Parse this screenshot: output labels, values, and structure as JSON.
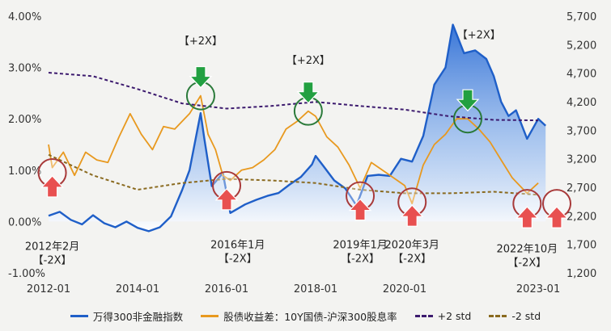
{
  "chart_data": {
    "type": "line",
    "x_ticks": [
      "2012-01",
      "2014-01",
      "2016-01",
      "2018-01",
      "2020-01",
      "2023-01"
    ],
    "y_left_ticks": [
      "4.00%",
      "3.00%",
      "2.00%",
      "1.00%",
      "0.00%",
      "-1.00%"
    ],
    "y_left_range": [
      -1.0,
      4.0
    ],
    "y_right_ticks": [
      "5,700",
      "5,200",
      "4,700",
      "4,200",
      "3,700",
      "3,200",
      "2,700",
      "2,200",
      "1,700",
      "1,200"
    ],
    "y_right_range": [
      1200,
      5700
    ],
    "x_range": [
      "2012-01",
      "2023-06"
    ],
    "series": [
      {
        "name": "万得300非金融指数",
        "axis": "right",
        "color": "#1f5fc8",
        "style": "solid-area",
        "points": [
          [
            "2012-01",
            2200
          ],
          [
            "2012-04",
            2270
          ],
          [
            "2012-07",
            2130
          ],
          [
            "2012-10",
            2050
          ],
          [
            "2013-01",
            2210
          ],
          [
            "2013-04",
            2070
          ],
          [
            "2013-07",
            2000
          ],
          [
            "2013-10",
            2100
          ],
          [
            "2014-01",
            1990
          ],
          [
            "2014-04",
            1930
          ],
          [
            "2014-07",
            2000
          ],
          [
            "2014-10",
            2190
          ],
          [
            "2015-01",
            2650
          ],
          [
            "2015-03",
            3000
          ],
          [
            "2015-06",
            4000
          ],
          [
            "2015-07",
            3550
          ],
          [
            "2015-09",
            2720
          ],
          [
            "2015-12",
            2950
          ],
          [
            "2016-02",
            2250
          ],
          [
            "2016-06",
            2400
          ],
          [
            "2016-09",
            2480
          ],
          [
            "2016-12",
            2550
          ],
          [
            "2017-03",
            2600
          ],
          [
            "2017-06",
            2750
          ],
          [
            "2017-09",
            2880
          ],
          [
            "2017-12",
            3100
          ],
          [
            "2018-01",
            3250
          ],
          [
            "2018-03",
            3080
          ],
          [
            "2018-06",
            2820
          ],
          [
            "2018-09",
            2680
          ],
          [
            "2018-12",
            2380
          ],
          [
            "2019-03",
            2900
          ],
          [
            "2019-06",
            2920
          ],
          [
            "2019-09",
            2900
          ],
          [
            "2019-12",
            3200
          ],
          [
            "2020-03",
            3150
          ],
          [
            "2020-06",
            3600
          ],
          [
            "2020-09",
            4500
          ],
          [
            "2020-12",
            4800
          ],
          [
            "2021-02",
            5550
          ],
          [
            "2021-05",
            5050
          ],
          [
            "2021-08",
            5100
          ],
          [
            "2021-11",
            4950
          ],
          [
            "2022-01",
            4650
          ],
          [
            "2022-03",
            4200
          ],
          [
            "2022-05",
            3950
          ],
          [
            "2022-07",
            4050
          ],
          [
            "2022-10",
            3550
          ],
          [
            "2023-01",
            3900
          ],
          [
            "2023-03",
            3780
          ]
        ]
      },
      {
        "name": "股债收益差：10Y国债-沪深300股息率",
        "axis": "left",
        "color": "#e8991f",
        "style": "solid",
        "points": [
          [
            "2012-01",
            1.5
          ],
          [
            "2012-02",
            1.05
          ],
          [
            "2012-05",
            1.35
          ],
          [
            "2012-08",
            0.9
          ],
          [
            "2012-11",
            1.35
          ],
          [
            "2013-02",
            1.2
          ],
          [
            "2013-05",
            1.15
          ],
          [
            "2013-08",
            1.65
          ],
          [
            "2013-11",
            2.1
          ],
          [
            "2014-02",
            1.7
          ],
          [
            "2014-05",
            1.4
          ],
          [
            "2014-08",
            1.85
          ],
          [
            "2014-11",
            1.8
          ],
          [
            "2015-03",
            2.1
          ],
          [
            "2015-06",
            2.45
          ],
          [
            "2015-08",
            1.7
          ],
          [
            "2015-10",
            1.4
          ],
          [
            "2015-12",
            0.9
          ],
          [
            "2016-02",
            0.8
          ],
          [
            "2016-05",
            1.0
          ],
          [
            "2016-08",
            1.05
          ],
          [
            "2016-11",
            1.2
          ],
          [
            "2017-02",
            1.4
          ],
          [
            "2017-05",
            1.8
          ],
          [
            "2017-08",
            1.95
          ],
          [
            "2017-11",
            2.15
          ],
          [
            "2018-01",
            2.05
          ],
          [
            "2018-04",
            1.65
          ],
          [
            "2018-07",
            1.45
          ],
          [
            "2018-10",
            1.1
          ],
          [
            "2019-01",
            0.65
          ],
          [
            "2019-04",
            1.15
          ],
          [
            "2019-07",
            1.0
          ],
          [
            "2019-10",
            0.85
          ],
          [
            "2020-01",
            0.7
          ],
          [
            "2020-03",
            0.35
          ],
          [
            "2020-06",
            1.1
          ],
          [
            "2020-09",
            1.5
          ],
          [
            "2020-12",
            1.7
          ],
          [
            "2021-03",
            2.0
          ],
          [
            "2021-06",
            2.0
          ],
          [
            "2021-09",
            1.8
          ],
          [
            "2021-12",
            1.55
          ],
          [
            "2022-03",
            1.2
          ],
          [
            "2022-06",
            0.85
          ],
          [
            "2022-10",
            0.55
          ],
          [
            "2023-01",
            0.75
          ]
        ]
      },
      {
        "name": "+2 std",
        "axis": "left",
        "color": "#3c1a6e",
        "style": "dashed",
        "points": [
          [
            "2012-01",
            2.9
          ],
          [
            "2013-01",
            2.83
          ],
          [
            "2014-01",
            2.58
          ],
          [
            "2015-01",
            2.3
          ],
          [
            "2016-01",
            2.2
          ],
          [
            "2017-01",
            2.25
          ],
          [
            "2018-01",
            2.33
          ],
          [
            "2019-01",
            2.25
          ],
          [
            "2020-01",
            2.18
          ],
          [
            "2021-01",
            2.05
          ],
          [
            "2022-01",
            1.98
          ],
          [
            "2023-01",
            1.97
          ]
        ]
      },
      {
        "name": "-2 std",
        "axis": "left",
        "color": "#8a6a1f",
        "style": "dashed",
        "points": [
          [
            "2012-01",
            1.3
          ],
          [
            "2013-01",
            0.9
          ],
          [
            "2014-01",
            0.62
          ],
          [
            "2015-01",
            0.75
          ],
          [
            "2016-01",
            0.83
          ],
          [
            "2017-01",
            0.8
          ],
          [
            "2018-01",
            0.75
          ],
          [
            "2019-01",
            0.62
          ],
          [
            "2020-01",
            0.55
          ],
          [
            "2021-01",
            0.55
          ],
          [
            "2022-01",
            0.58
          ],
          [
            "2023-01",
            0.52
          ]
        ]
      }
    ],
    "annotations": [
      {
        "label": "【+2X】",
        "date": "2015-06",
        "value": 2.45,
        "kind": "sell",
        "label_date": "2015-06",
        "label_value": 3.45
      },
      {
        "label": "【+2X】",
        "date": "2017-11",
        "value": 2.15,
        "kind": "sell",
        "label_date": "2017-11",
        "label_value": 3.07
      },
      {
        "label": "【+2X】",
        "date": "2021-06",
        "value": 2.0,
        "kind": "sell",
        "label_date": "2021-09",
        "label_value": 3.57
      },
      {
        "label": "2012年2月\n【-2X】",
        "date": "2012-02",
        "value": 0.95,
        "kind": "buy",
        "label_date": "2012-02",
        "label_value": -0.55
      },
      {
        "label": "2016年1月\n【-2X】",
        "date": "2016-01",
        "value": 0.7,
        "kind": "buy",
        "label_date": "2016-04",
        "label_value": -0.52
      },
      {
        "label": "2019年1月\n【-2X】",
        "date": "2019-01",
        "value": 0.5,
        "kind": "buy",
        "label_date": "2019-01",
        "label_value": -0.52
      },
      {
        "label": "2020年3月\n【-2X】",
        "date": "2020-03",
        "value": 0.38,
        "kind": "buy",
        "label_date": "2020-03",
        "label_value": -0.52
      },
      {
        "label": "2022年10月\n【-2X】",
        "date": "2022-10",
        "value": 0.35,
        "kind": "buy",
        "label_date": "2022-10",
        "label_value": -0.6
      },
      {
        "label": "",
        "date": "2023-06",
        "value": 0.35,
        "kind": "buy"
      }
    ],
    "legend_position": "bottom",
    "grid": false
  },
  "colors": {
    "background": "#f3f3f1",
    "sell_marker": "#22a041",
    "buy_marker": "#e85050",
    "axis_text": "#333333"
  }
}
